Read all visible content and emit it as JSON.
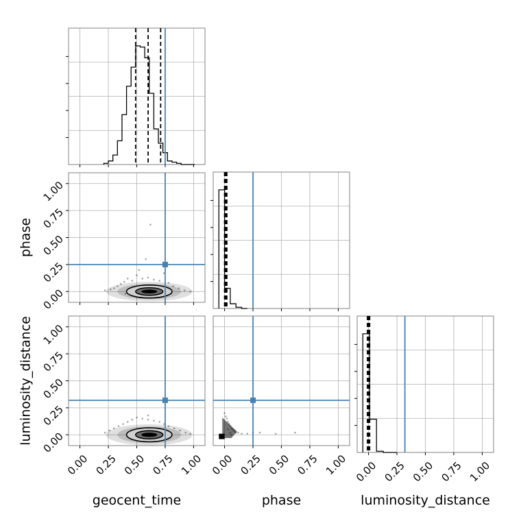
{
  "chart_data": {
    "type": "corner",
    "parameters": [
      "geocent_time",
      "phase",
      "luminosity_distance"
    ],
    "axis_labels": {
      "x": [
        "geocent_time",
        "phase",
        "luminosity_distance"
      ],
      "y": [
        "",
        "phase",
        "luminosity_distance"
      ]
    },
    "tick_values": [
      0.0,
      0.25,
      0.5,
      0.75,
      1.0
    ],
    "tick_labels": [
      "0.00",
      "0.25",
      "0.50",
      "0.75",
      "1.00"
    ],
    "axis_range": [
      -0.1,
      1.1
    ],
    "grid": true,
    "colors": {
      "histogram": "#000000",
      "truth": "#4682b4",
      "grid": "#b0b0b0",
      "frame": "#808080"
    },
    "truth": {
      "geocent_time": 0.75,
      "phase": 0.25,
      "luminosity_distance": 0.32
    },
    "quantiles": {
      "geocent_time": [
        0.49,
        0.6,
        0.71
      ],
      "phase": [
        0.0,
        0.01,
        0.02
      ],
      "luminosity_distance": [
        -0.01,
        0.0,
        0.01
      ]
    },
    "histograms": {
      "geocent_time": {
        "edges": [
          0.21,
          0.25,
          0.29,
          0.33,
          0.37,
          0.41,
          0.45,
          0.49,
          0.53,
          0.57,
          0.61,
          0.65,
          0.69,
          0.73,
          0.77,
          0.81,
          0.85,
          0.89,
          0.93,
          0.97,
          1.01
        ],
        "counts": [
          0.01,
          0.03,
          0.08,
          0.2,
          0.42,
          0.66,
          0.82,
          1.0,
          0.99,
          0.9,
          0.6,
          0.3,
          0.18,
          0.1,
          0.03,
          0.02,
          0.01,
          0.0,
          0.0,
          0.0
        ]
      },
      "phase": {
        "edges": [
          -0.05,
          0.0,
          0.05,
          0.1,
          0.15,
          0.2
        ],
        "counts": [
          1.0,
          0.17,
          0.04,
          0.01,
          0.0
        ]
      },
      "luminosity_distance": {
        "edges": [
          -0.05,
          0.01,
          0.07,
          0.13,
          0.19,
          0.25
        ],
        "counts": [
          1.0,
          0.28,
          0.01,
          0.0,
          0.0
        ]
      }
    },
    "panels_2d": [
      {
        "x": "geocent_time",
        "y": "phase",
        "scatter": [
          [
            0.22,
            0.01
          ],
          [
            0.27,
            0.02
          ],
          [
            0.3,
            0.03
          ],
          [
            0.33,
            0.05
          ],
          [
            0.36,
            0.07
          ],
          [
            0.39,
            0.09
          ],
          [
            0.42,
            0.12
          ],
          [
            0.46,
            0.1
          ],
          [
            0.5,
            0.15
          ],
          [
            0.55,
            0.12
          ],
          [
            0.6,
            0.13
          ],
          [
            0.62,
            0.62
          ],
          [
            0.65,
            0.11
          ],
          [
            0.7,
            0.1
          ],
          [
            0.74,
            0.17
          ],
          [
            0.78,
            0.08
          ],
          [
            0.82,
            0.05
          ],
          [
            0.87,
            0.03
          ],
          [
            0.92,
            0.01
          ],
          [
            0.97,
            0.0
          ],
          [
            0.4,
            -0.02
          ],
          [
            0.8,
            -0.02
          ],
          [
            0.58,
            0.3
          ],
          [
            0.52,
            0.2
          ]
        ],
        "contours": [
          {
            "level": "outer",
            "center": [
              0.61,
              0.0
            ],
            "semi_axes": [
              0.2,
              0.06
            ]
          },
          {
            "level": "inner",
            "center": [
              0.61,
              0.0
            ],
            "semi_axes": [
              0.12,
              0.035
            ]
          }
        ],
        "core": {
          "center": [
            0.61,
            0.0
          ],
          "semi_axes": [
            0.07,
            0.018
          ]
        }
      },
      {
        "x": "geocent_time",
        "y": "luminosity_distance",
        "scatter": [
          [
            0.22,
            0.02
          ],
          [
            0.26,
            0.04
          ],
          [
            0.3,
            0.06
          ],
          [
            0.34,
            0.08
          ],
          [
            0.38,
            0.1
          ],
          [
            0.42,
            0.12
          ],
          [
            0.46,
            0.14
          ],
          [
            0.5,
            0.16
          ],
          [
            0.55,
            0.15
          ],
          [
            0.6,
            0.14
          ],
          [
            0.65,
            0.13
          ],
          [
            0.7,
            0.12
          ],
          [
            0.74,
            0.1
          ],
          [
            0.78,
            0.08
          ],
          [
            0.83,
            0.06
          ],
          [
            0.88,
            0.04
          ],
          [
            0.93,
            0.02
          ],
          [
            0.97,
            0.01
          ],
          [
            0.45,
            -0.04
          ],
          [
            0.75,
            -0.04
          ],
          [
            0.6,
            0.18
          ]
        ],
        "contours": [
          {
            "level": "outer",
            "center": [
              0.61,
              0.0
            ],
            "semi_axes": [
              0.2,
              0.065
            ]
          },
          {
            "level": "inner",
            "center": [
              0.61,
              0.0
            ],
            "semi_axes": [
              0.12,
              0.038
            ]
          }
        ],
        "core": {
          "center": [
            0.61,
            0.0
          ],
          "semi_axes": [
            0.07,
            0.02
          ]
        }
      },
      {
        "x": "phase",
        "y": "luminosity_distance",
        "scatter": [
          [
            0.0,
            0.2
          ],
          [
            0.01,
            0.17
          ],
          [
            0.02,
            0.15
          ],
          [
            0.03,
            0.12
          ],
          [
            0.04,
            0.1
          ],
          [
            0.05,
            0.08
          ],
          [
            0.06,
            0.06
          ],
          [
            0.07,
            0.05
          ],
          [
            0.08,
            0.04
          ],
          [
            0.09,
            0.03
          ],
          [
            0.1,
            0.02
          ],
          [
            0.12,
            0.02
          ],
          [
            0.15,
            0.01
          ],
          [
            0.2,
            0.01
          ],
          [
            0.25,
            0.02
          ],
          [
            0.31,
            0.02
          ],
          [
            0.45,
            0.01
          ],
          [
            0.62,
            0.02
          ],
          [
            0.03,
            0.05
          ],
          [
            0.05,
            0.02
          ],
          [
            0.06,
            0.0
          ]
        ],
        "wedge": [
          [
            -0.02,
            -0.03
          ],
          [
            -0.02,
            0.16
          ],
          [
            0.05,
            0.09
          ],
          [
            0.11,
            0.03
          ],
          [
            0.06,
            -0.03
          ]
        ],
        "core_box": [
          [
            -0.05,
            -0.04
          ],
          [
            0.0,
            0.01
          ]
        ]
      }
    ]
  }
}
